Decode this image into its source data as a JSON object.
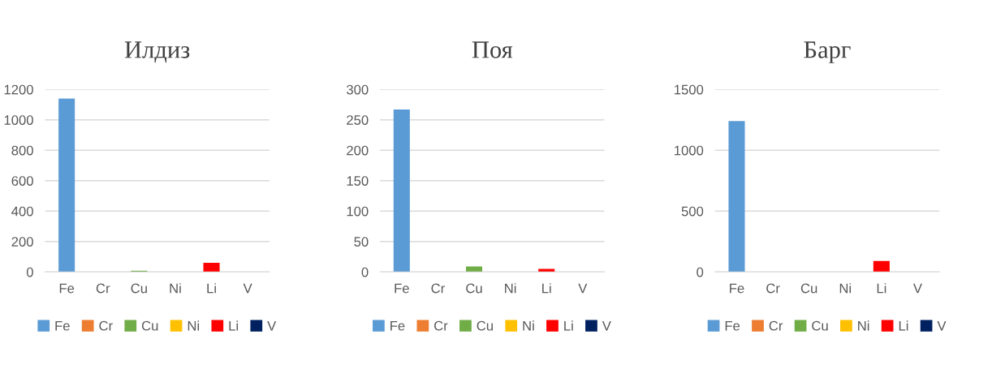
{
  "chart_data": [
    {
      "type": "bar",
      "title": "Илдиз",
      "categories": [
        "Fe",
        "Cr",
        "Cu",
        "Ni",
        "Li",
        "V"
      ],
      "series": [
        {
          "name": "Fe",
          "color": "#5b9bd5",
          "values": [
            1140,
            0,
            0,
            0,
            0,
            0
          ]
        },
        {
          "name": "Cr",
          "color": "#ed7d31",
          "values": [
            0,
            0,
            0,
            0,
            0,
            0
          ]
        },
        {
          "name": "Cu",
          "color": "#70ad47",
          "values": [
            0,
            0,
            8,
            0,
            0,
            0
          ]
        },
        {
          "name": "Ni",
          "color": "#ffc000",
          "values": [
            0,
            0,
            0,
            0,
            0,
            0
          ]
        },
        {
          "name": "Li",
          "color": "#ff0000",
          "values": [
            0,
            0,
            0,
            0,
            60,
            0
          ]
        },
        {
          "name": "V",
          "color": "#002060",
          "values": [
            0,
            0,
            0,
            0,
            0,
            0
          ]
        }
      ],
      "ylim": [
        0,
        1200
      ],
      "yticks": [
        0,
        200,
        400,
        600,
        800,
        1000,
        1200
      ],
      "grid": "y",
      "legend": "bottom"
    },
    {
      "type": "bar",
      "title": "Поя",
      "categories": [
        "Fe",
        "Cr",
        "Cu",
        "Ni",
        "Li",
        "V"
      ],
      "series": [
        {
          "name": "Fe",
          "color": "#5b9bd5",
          "values": [
            267,
            0,
            0,
            0,
            0,
            0
          ]
        },
        {
          "name": "Cr",
          "color": "#ed7d31",
          "values": [
            0,
            0,
            0,
            0,
            0,
            0
          ]
        },
        {
          "name": "Cu",
          "color": "#70ad47",
          "values": [
            0,
            0,
            9,
            0,
            0,
            0
          ]
        },
        {
          "name": "Ni",
          "color": "#ffc000",
          "values": [
            0,
            0,
            0,
            0,
            0,
            0
          ]
        },
        {
          "name": "Li",
          "color": "#ff0000",
          "values": [
            0,
            0,
            0,
            0,
            5,
            0
          ]
        },
        {
          "name": "V",
          "color": "#002060",
          "values": [
            0,
            0,
            0,
            0,
            0,
            0
          ]
        }
      ],
      "ylim": [
        0,
        300
      ],
      "yticks": [
        0,
        50,
        100,
        150,
        200,
        250,
        300
      ],
      "grid": "y",
      "legend": "bottom"
    },
    {
      "type": "bar",
      "title": "Барг",
      "categories": [
        "Fe",
        "Cr",
        "Cu",
        "Ni",
        "Li",
        "V"
      ],
      "series": [
        {
          "name": "Fe",
          "color": "#5b9bd5",
          "values": [
            1240,
            0,
            0,
            0,
            0,
            0
          ]
        },
        {
          "name": "Cr",
          "color": "#ed7d31",
          "values": [
            0,
            0,
            0,
            0,
            0,
            0
          ]
        },
        {
          "name": "Cu",
          "color": "#70ad47",
          "values": [
            0,
            0,
            0,
            0,
            0,
            0
          ]
        },
        {
          "name": "Ni",
          "color": "#ffc000",
          "values": [
            0,
            0,
            0,
            0,
            0,
            0
          ]
        },
        {
          "name": "Li",
          "color": "#ff0000",
          "values": [
            0,
            0,
            0,
            0,
            90,
            0
          ]
        },
        {
          "name": "V",
          "color": "#002060",
          "values": [
            0,
            0,
            0,
            0,
            0,
            0
          ]
        }
      ],
      "ylim": [
        0,
        1500
      ],
      "yticks": [
        0,
        500,
        1000,
        1500
      ],
      "grid": "y",
      "legend": "bottom"
    }
  ]
}
